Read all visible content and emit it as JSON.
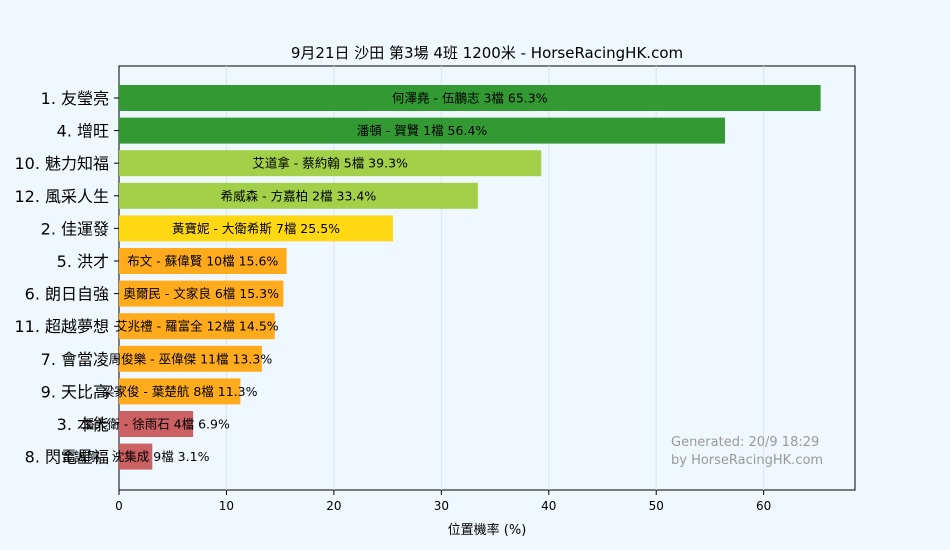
{
  "chart_data": {
    "type": "bar",
    "orientation": "horizontal",
    "title": "9月21日  沙田  第3場  4班  1200米 - HorseRacingHK.com",
    "xlabel": "位置機率 (%)",
    "ylabel": "",
    "xlim": [
      0,
      68.5
    ],
    "xticks": [
      "0",
      "10",
      "20",
      "30",
      "40",
      "50",
      "60"
    ],
    "grid": "vertical",
    "categories": [
      "1. 友瑩亮",
      "4. 增旺",
      "10. 魅力知福",
      "12. 風采人生",
      "2. 佳運發",
      "5. 洪才",
      "6. 朗日自強",
      "11. 超越夢想",
      "7. 會當凌",
      "9. 天比高",
      "3. 本能",
      "8. 閃電星福"
    ],
    "values": [
      65.3,
      56.4,
      39.3,
      33.4,
      25.5,
      15.6,
      15.3,
      14.5,
      13.3,
      11.3,
      6.9,
      3.1
    ],
    "bar_labels": [
      "何澤堯 - 伍鵬志 3檔  65.3%",
      "潘頓 - 賀賢 1檔  56.4%",
      "艾道拿 - 蔡約翰 5檔  39.3%",
      "希威森 - 方嘉柏 2檔  33.4%",
      "黃寶妮 - 大衛希斯 7檔  25.5%",
      "布文 - 蘇偉賢 10檔  15.6%",
      "奧爾民 - 文家良 6檔  15.3%",
      "艾兆禮 - 羅富全 12檔  14.5%",
      "周俊樂 - 巫偉傑 11檔  13.3%",
      "梁家俊 - 葉楚航 8檔  11.3%",
      "潘大衛 - 徐雨石 4檔  6.9%",
      "金誠剛 - 沈集成 9檔  3.1%"
    ],
    "colors": [
      "#339933",
      "#339933",
      "#a2d149",
      "#a2d149",
      "#ffd814",
      "#ffab1c",
      "#ffab1c",
      "#ffab1c",
      "#ffab1c",
      "#ffab1c",
      "#cc6164",
      "#cc6164"
    ],
    "annotations": [
      "Generated: 20/9 18:29",
      "by HorseRacingHK.com"
    ]
  }
}
